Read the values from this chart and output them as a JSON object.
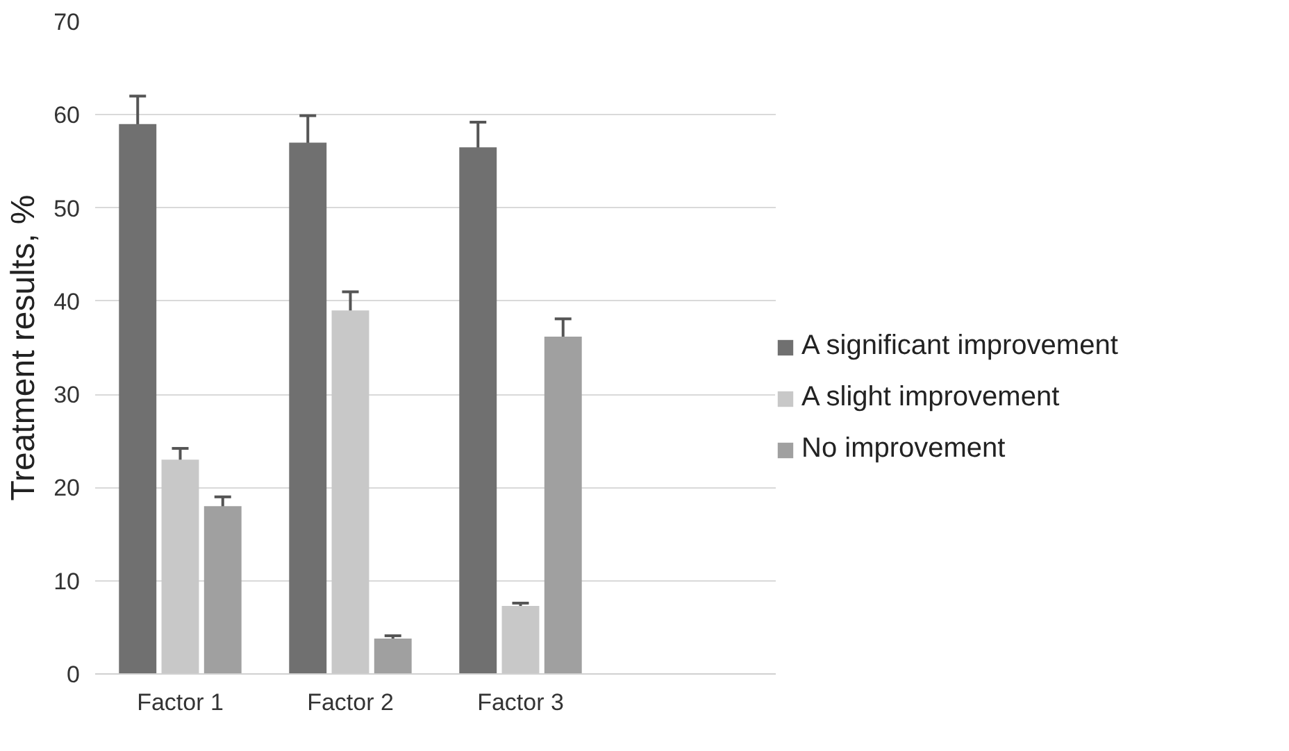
{
  "chart_data": {
    "type": "bar",
    "ylabel": "Treatment results, %",
    "categories": [
      "Factor 1",
      "Factor 2",
      "Factor 3",
      null
    ],
    "series": [
      {
        "name": "A significant improvement",
        "color": "#707070",
        "values": [
          59,
          57,
          56.5,
          null
        ],
        "errors": [
          3,
          2.9,
          2.7,
          null
        ]
      },
      {
        "name": "A slight improvement",
        "color": "#c8c8c8",
        "values": [
          23,
          39,
          7.3,
          null
        ],
        "errors": [
          1.2,
          2,
          0.3,
          null
        ]
      },
      {
        "name": "No improvement",
        "color": "#a0a0a0",
        "values": [
          18,
          3.8,
          36.2,
          null
        ],
        "errors": [
          1,
          0.3,
          1.9,
          null
        ]
      }
    ],
    "ylim": [
      0,
      70
    ],
    "yticks": [
      0,
      10,
      20,
      30,
      40,
      50,
      60,
      70
    ],
    "grid": "y",
    "legend": "right"
  }
}
